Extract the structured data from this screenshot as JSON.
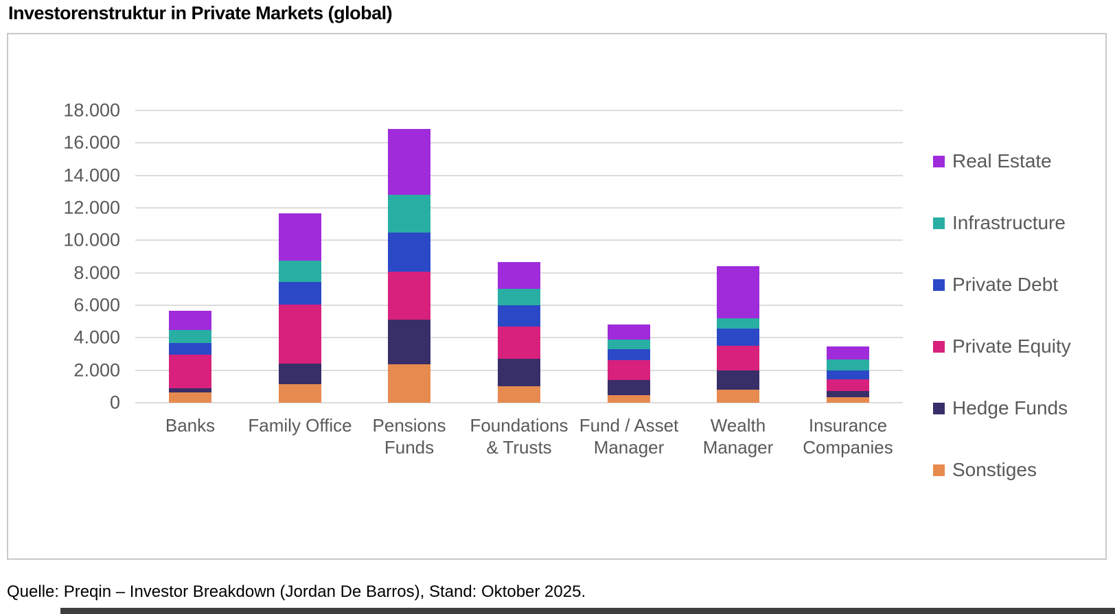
{
  "page": {
    "title": "Investorenstruktur in Private Markets (global)",
    "source": "Quelle: Preqin – Investor Breakdown (Jordan De Barros), Stand: Oktober 2025."
  },
  "chart_data": {
    "type": "bar",
    "stacked": true,
    "title": "Investorenstruktur in Private Markets (global)",
    "categories": [
      "Banks",
      "Family Office",
      "Pensions Funds",
      "Foundations & Trusts",
      "Fund / Asset Manager",
      "Wealth Manager",
      "Insurance Companies"
    ],
    "category_label_lines": [
      [
        "Banks"
      ],
      [
        "Family Office"
      ],
      [
        "Pensions",
        "Funds"
      ],
      [
        "Foundations",
        "& Trusts"
      ],
      [
        "Fund / Asset",
        "Manager"
      ],
      [
        "Wealth",
        "Manager"
      ],
      [
        "Insurance",
        "Companies"
      ]
    ],
    "series": [
      {
        "name": "Sonstiges",
        "color": "#e78a4f",
        "values": [
          650,
          1150,
          2350,
          1000,
          450,
          800,
          350
        ]
      },
      {
        "name": "Hedge Funds",
        "color": "#382e68",
        "values": [
          250,
          1250,
          2750,
          1700,
          950,
          1200,
          350
        ]
      },
      {
        "name": "Private Equity",
        "color": "#d7217d",
        "values": [
          2050,
          3650,
          2950,
          2000,
          1200,
          1500,
          750
        ]
      },
      {
        "name": "Private Debt",
        "color": "#2b49c6",
        "values": [
          720,
          1400,
          2450,
          1300,
          700,
          1050,
          550
        ]
      },
      {
        "name": "Infrastructure",
        "color": "#29aea3",
        "values": [
          810,
          1300,
          2300,
          1000,
          600,
          650,
          650
        ]
      },
      {
        "name": "Real Estate",
        "color": "#9f2bdb",
        "values": [
          1200,
          2900,
          4050,
          1650,
          900,
          3200,
          800
        ]
      }
    ],
    "totals": [
      5680,
      11650,
      16850,
      8650,
      4800,
      8400,
      3450
    ],
    "legend_order_top_to_bottom": [
      "Real Estate",
      "Infrastructure",
      "Private Debt",
      "Private Equity",
      "Hedge Funds",
      "Sonstiges"
    ],
    "legend_position": "right",
    "ylim": [
      0,
      18000
    ],
    "ytick_interval": 2000,
    "ytick_labels": [
      "0",
      "2.000",
      "4.000",
      "6.000",
      "8.000",
      "10.000",
      "12.000",
      "14.000",
      "16.000",
      "18.000"
    ],
    "grid": true,
    "xlabel": "",
    "ylabel": ""
  },
  "colors": {
    "grid": "#dcdcdc",
    "axis_text": "#595959",
    "frame_border": "#c9c9c9",
    "title_text": "#000000",
    "bottom_bar": "#3e3e3e"
  }
}
